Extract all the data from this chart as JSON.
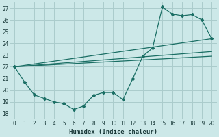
{
  "bg_color": "#cce8e8",
  "grid_color": "#aacccc",
  "line_color": "#1a6e64",
  "xlabel": "Humidex (Indice chaleur)",
  "xlim": [
    -0.5,
    20.5
  ],
  "ylim": [
    17.5,
    27.5
  ],
  "xticks": [
    0,
    1,
    2,
    3,
    4,
    5,
    6,
    7,
    8,
    9,
    10,
    11,
    12,
    13,
    14,
    15,
    16,
    17,
    18,
    19,
    20
  ],
  "yticks": [
    18,
    19,
    20,
    21,
    22,
    23,
    24,
    25,
    26,
    27
  ],
  "line1_x": [
    0,
    1,
    2,
    3,
    4,
    5,
    6,
    7,
    8,
    9,
    10,
    11,
    12,
    13,
    14,
    15,
    16,
    17,
    18,
    19,
    20
  ],
  "line1_y": [
    22.0,
    20.7,
    19.6,
    19.3,
    19.0,
    18.85,
    18.35,
    18.65,
    19.55,
    19.8,
    19.8,
    19.2,
    21.0,
    22.9,
    23.6,
    27.1,
    26.5,
    26.35,
    26.45,
    26.0,
    24.4
  ],
  "line2_x": [
    0,
    20
  ],
  "line2_y": [
    22.0,
    24.4
  ],
  "line3_x": [
    0,
    20
  ],
  "line3_y": [
    22.0,
    23.3
  ],
  "line4_x": [
    0,
    20
  ],
  "line4_y": [
    22.0,
    22.9
  ]
}
